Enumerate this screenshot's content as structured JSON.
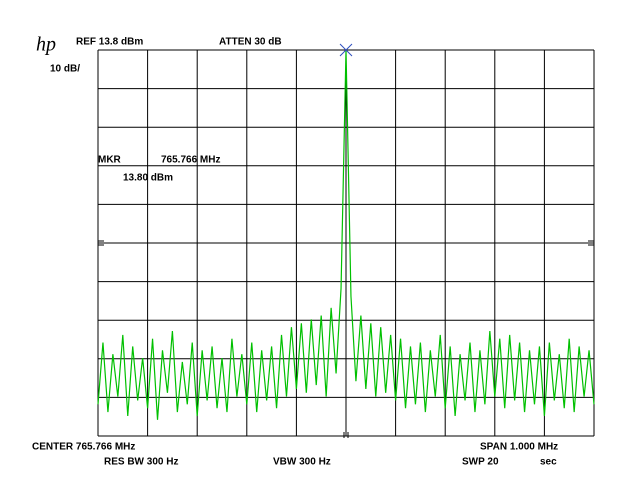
{
  "chart_data": {
    "type": "line",
    "logo": "hp",
    "annotations": {
      "ref": "REF 13.8 dBm",
      "atten": "ATTEN 30 dB",
      "scale": "10 dB/",
      "mkr": "MKR",
      "mkr_freq": "765.766 MHz",
      "mkr_level": "13.80 dBm",
      "center": "CENTER 765.766 MHz",
      "span": "SPAN 1.000 MHz",
      "rbw": "RES BW 300 Hz",
      "vbw": "VBW 300 Hz",
      "swp": "SWP 20",
      "swp_unit": "sec"
    },
    "color": "#00c000",
    "marker_color": "#3050c0",
    "xlim": [
      765.266,
      766.266
    ],
    "ylim": [
      -86.2,
      13.8
    ],
    "xticks": [
      765.266,
      765.366,
      765.466,
      765.566,
      765.666,
      765.766,
      765.866,
      765.966,
      766.066,
      766.166,
      766.266
    ],
    "yticks": [
      -86.2,
      -76.2,
      -66.2,
      -56.2,
      -46.2,
      -36.2,
      -26.2,
      -16.2,
      -6.2,
      3.8,
      13.8
    ],
    "grid": true,
    "marker_index": 50,
    "x": [
      765.266,
      765.276,
      765.286,
      765.296,
      765.306,
      765.316,
      765.326,
      765.336,
      765.346,
      765.356,
      765.366,
      765.376,
      765.386,
      765.396,
      765.406,
      765.416,
      765.426,
      765.436,
      765.446,
      765.456,
      765.466,
      765.476,
      765.486,
      765.496,
      765.506,
      765.516,
      765.526,
      765.536,
      765.546,
      765.556,
      765.566,
      765.576,
      765.586,
      765.596,
      765.606,
      765.616,
      765.626,
      765.636,
      765.646,
      765.656,
      765.666,
      765.676,
      765.686,
      765.696,
      765.706,
      765.716,
      765.726,
      765.736,
      765.746,
      765.756,
      765.766,
      765.776,
      765.786,
      765.796,
      765.806,
      765.816,
      765.826,
      765.836,
      765.846,
      765.856,
      765.866,
      765.876,
      765.886,
      765.896,
      765.906,
      765.916,
      765.926,
      765.936,
      765.946,
      765.956,
      765.966,
      765.976,
      765.986,
      765.996,
      766.006,
      766.016,
      766.026,
      766.036,
      766.046,
      766.056,
      766.066,
      766.076,
      766.086,
      766.096,
      766.106,
      766.116,
      766.126,
      766.136,
      766.146,
      766.156,
      766.166,
      766.176,
      766.186,
      766.196,
      766.206,
      766.216,
      766.226,
      766.236,
      766.246,
      766.256,
      766.266
    ],
    "values": [
      -78,
      -62,
      -80,
      -65,
      -76,
      -60,
      -81,
      -63,
      -77,
      -66,
      -79,
      -61,
      -82,
      -64,
      -75,
      -59,
      -80,
      -67,
      -78,
      -62,
      -81,
      -64,
      -77,
      -63,
      -79,
      -66,
      -80,
      -61,
      -76,
      -65,
      -78,
      -62,
      -80,
      -64,
      -77,
      -63,
      -79,
      -60,
      -76,
      -58,
      -74,
      -57,
      -75,
      -56,
      -73,
      -55,
      -76,
      -53,
      -70,
      -48,
      13.8,
      -50,
      -72,
      -55,
      -74,
      -57,
      -76,
      -58,
      -75,
      -60,
      -77,
      -61,
      -79,
      -63,
      -78,
      -62,
      -80,
      -64,
      -76,
      -60,
      -79,
      -63,
      -81,
      -65,
      -77,
      -62,
      -80,
      -64,
      -78,
      -59,
      -76,
      -61,
      -79,
      -60,
      -77,
      -62,
      -80,
      -64,
      -78,
      -63,
      -81,
      -62,
      -77,
      -65,
      -79,
      -61,
      -80,
      -63,
      -76,
      -64,
      -78
    ]
  }
}
